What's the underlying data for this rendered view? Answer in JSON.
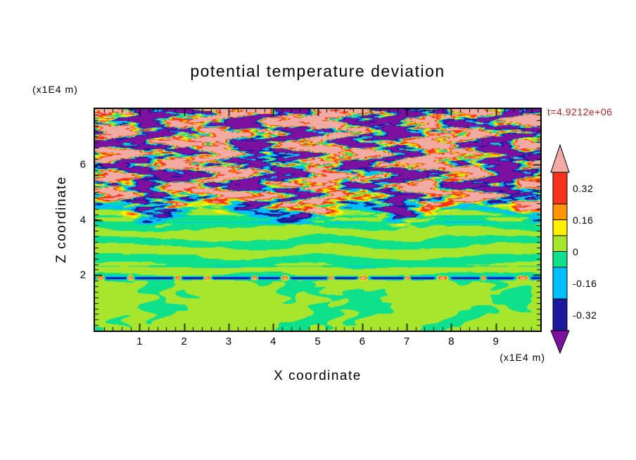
{
  "chart_data": {
    "type": "heatmap",
    "title": "potential temperature deviation",
    "xlabel": "X coordinate",
    "ylabel": "Z coordinate",
    "x_unit_label": "(x1E4 m)",
    "y_unit_label": "(x1E4 m)",
    "time_annotation": "t=4.9212e+06",
    "time_color": "#B22222",
    "xlim": [
      0,
      10
    ],
    "ylim": [
      0,
      8
    ],
    "x_major_ticks": [
      1,
      2,
      3,
      4,
      5,
      6,
      7,
      8,
      9
    ],
    "x_minor_step": 0.2,
    "y_major_ticks": [
      2,
      4,
      6
    ],
    "y_minor_step": 0.2,
    "grid": false,
    "colorbar": {
      "position": "right",
      "tick_labels": [
        "0.32",
        "0.16",
        "0",
        "-0.16",
        "-0.32"
      ],
      "boundaries": [
        -0.4,
        -0.24,
        -0.08,
        0,
        0.08,
        0.16,
        0.24,
        0.4
      ],
      "segment_colors_bottom_to_top": [
        "#1A1A9C",
        "#00BFFF",
        "#0EE08C",
        "#A8E62E",
        "#FFF100",
        "#FF9500",
        "#F8331B"
      ],
      "under_arrow_color": "#7C109F",
      "over_arrow_color": "#F1ABA3"
    },
    "field_summary": {
      "description": "2D contour field of potential temperature deviation over X=0-10 (x1E4 m) and Z=0-8 (x1E4 m). Near-zero values (spring green / yellow-green mottling) below Z=2; a thin strongly negative (dark blue) inversion line at Z=1.9 with occasional red/orange breaks; weak horizontal green striping with a few cyan lamina for Z=2-4.3; large-amplitude turbulent layer above Z=4.3 dominated by horizontally elongated pink (>0.4) and purple (<-0.4) eddies rimmed by red, orange, yellow, cyan and dark blue filaments.",
      "value_range_shown": [
        -0.4,
        0.4
      ]
    }
  }
}
